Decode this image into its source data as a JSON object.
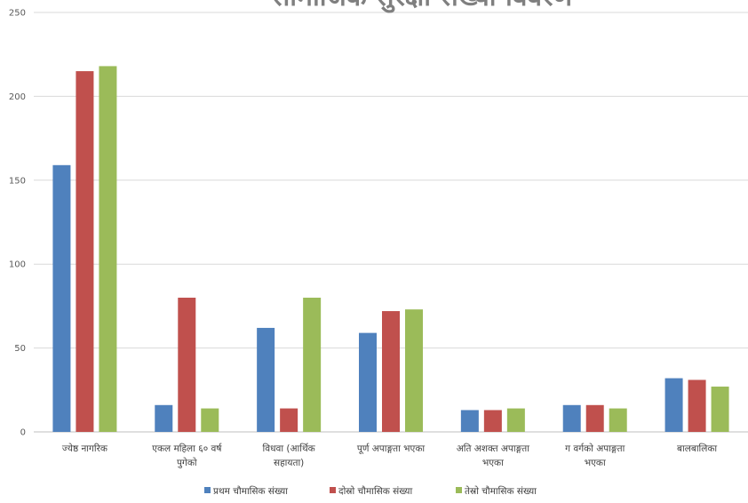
{
  "chart_data": {
    "type": "bar",
    "title": "सामाजिक सुरक्षा संख्या विवरण",
    "categories": [
      [
        "ज्येष्ठ नागरिक"
      ],
      [
        "एकल महिला ६० वर्ष",
        "पुगेको"
      ],
      [
        "विधवा (आर्थिक",
        "सहायता)"
      ],
      [
        "पूर्ण अपाङ्गता भएका"
      ],
      [
        "अति अशक्त अपाङ्गता",
        "भएका"
      ],
      [
        "ग वर्गको अपाङ्गता",
        "भएका"
      ],
      [
        "बालबालिका"
      ]
    ],
    "series": [
      {
        "name": "प्रथम चौमासिक संख्या",
        "color": "#4f81bd",
        "values": [
          159,
          16,
          62,
          59,
          13,
          16,
          32
        ]
      },
      {
        "name": "दोस्रो चौमासिक संख्या",
        "color": "#c0504d",
        "values": [
          215,
          80,
          14,
          72,
          13,
          16,
          31
        ]
      },
      {
        "name": "तेस्रो चौमासिक संख्या",
        "color": "#9bbb59",
        "values": [
          218,
          14,
          80,
          73,
          14,
          14,
          27
        ]
      }
    ],
    "yticks": [
      0,
      50,
      100,
      150,
      200,
      250
    ],
    "ylim": [
      0,
      250
    ],
    "grid": true,
    "legend": "bottom"
  }
}
